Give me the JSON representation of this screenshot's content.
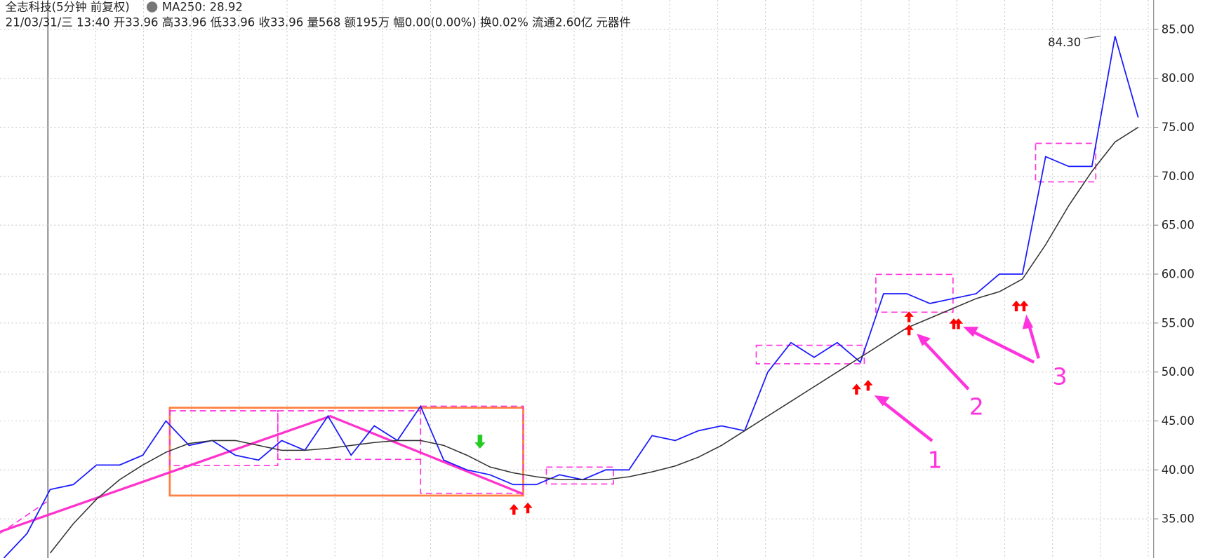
{
  "chart_data": {
    "type": "line",
    "title": "全志科技(5分钟 前复权)",
    "ma_label": "MA250: 28.92",
    "subtitle": "21/03/31/三 13:40 开33.96 高33.96 低33.96 收33.96 量568 额195万 幅0.00(0.00%) 换0.02% 流通2.60亿 元器件",
    "series": [
      {
        "color": "#1a1aff",
        "values": [
          31,
          33.5,
          38,
          38.5,
          40.5,
          40.5,
          41.5,
          45,
          42.5,
          43,
          41.5,
          41,
          43,
          42,
          45.5,
          41.5,
          44.5,
          43,
          46.5,
          41,
          40,
          39.5,
          38.5,
          38.5,
          39.5,
          39,
          40,
          40,
          43.5,
          43,
          44,
          44.5,
          44,
          50,
          53,
          51.5,
          53,
          51,
          58,
          58,
          57,
          57.5,
          58,
          60,
          60,
          72,
          71,
          71,
          84.3,
          76
        ]
      },
      {
        "color": "#333333",
        "values": [
          null,
          null,
          31.5,
          34.5,
          37,
          39,
          40.5,
          41.8,
          42.7,
          43,
          43,
          42.5,
          42,
          42,
          42.2,
          42.5,
          42.8,
          43,
          43,
          42.5,
          41.5,
          40.3,
          39.7,
          39.3,
          39,
          39,
          39,
          39.3,
          39.8,
          40.4,
          41.3,
          42.5,
          44,
          45.5,
          47,
          48.5,
          50,
          51.5,
          53,
          54.5,
          55.5,
          56.5,
          57.5,
          58.2,
          59.5,
          63,
          67,
          70.5,
          73.5,
          75
        ]
      }
    ],
    "ylim": [
      31,
      88
    ],
    "yticks": [
      {
        "value": 35,
        "label": "35.00"
      },
      {
        "value": 40,
        "label": "40.00"
      },
      {
        "value": 45,
        "label": "45.00"
      },
      {
        "value": 50,
        "label": "50.00"
      },
      {
        "value": 55,
        "label": "55.00"
      },
      {
        "value": 60,
        "label": "60.00"
      },
      {
        "value": 65,
        "label": "65.00"
      },
      {
        "value": 70,
        "label": "70.00"
      },
      {
        "value": 75,
        "label": "75.00"
      },
      {
        "value": 80,
        "label": "80.00"
      },
      {
        "value": 85,
        "label": "85.00"
      }
    ],
    "grid": true,
    "annotations": [
      "84.30",
      "1",
      "2",
      "3"
    ]
  }
}
